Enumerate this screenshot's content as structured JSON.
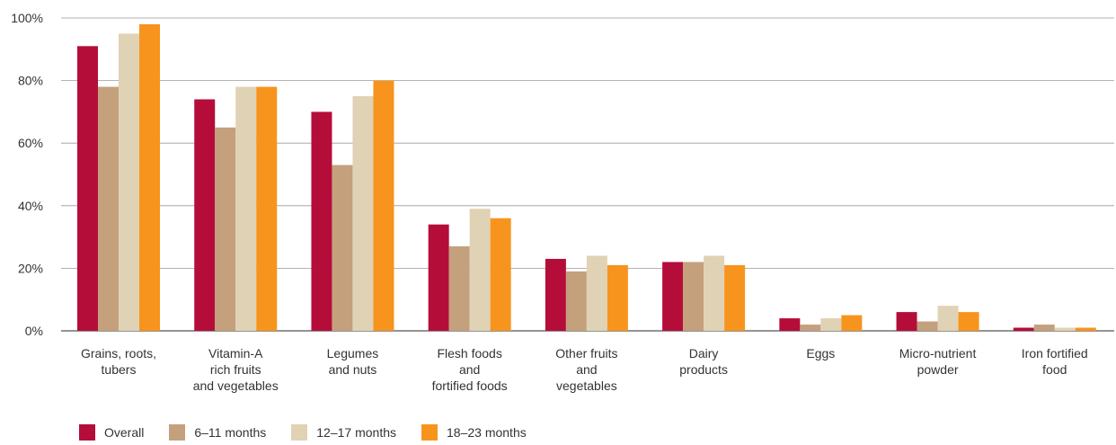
{
  "chart_data": {
    "type": "bar",
    "categories": [
      [
        "Grains, roots,",
        "tubers"
      ],
      [
        "Vitamin-A",
        "rich fruits",
        "and vegetables"
      ],
      [
        "Legumes",
        "and nuts"
      ],
      [
        "Flesh foods",
        "and",
        "fortified foods"
      ],
      [
        "Other fruits",
        "and",
        "vegetables"
      ],
      [
        "Dairy",
        "products"
      ],
      [
        "Eggs"
      ],
      [
        "Micro-nutrient",
        "powder"
      ],
      [
        "Iron fortified",
        "food"
      ]
    ],
    "series": [
      {
        "name": "Overall",
        "color": "#b50d3a",
        "values": [
          91,
          74,
          70,
          34,
          23,
          22,
          4,
          6,
          1
        ]
      },
      {
        "name": "6–11 months",
        "color": "#c4a07d",
        "values": [
          78,
          65,
          53,
          27,
          19,
          22,
          2,
          3,
          2
        ]
      },
      {
        "name": "12–17 months",
        "color": "#e0d2b4",
        "values": [
          95,
          78,
          75,
          39,
          24,
          24,
          4,
          8,
          1
        ]
      },
      {
        "name": "18–23 months",
        "color": "#f7941d",
        "values": [
          98,
          78,
          80,
          36,
          21,
          21,
          5,
          6,
          1
        ]
      }
    ],
    "ylim": [
      0,
      100
    ],
    "yticks": [
      0,
      20,
      40,
      60,
      80,
      100
    ],
    "ytick_labels": [
      "0%",
      "20%",
      "40%",
      "60%",
      "80%",
      "100%"
    ],
    "grid": true,
    "legend_position": "bottom-left"
  }
}
